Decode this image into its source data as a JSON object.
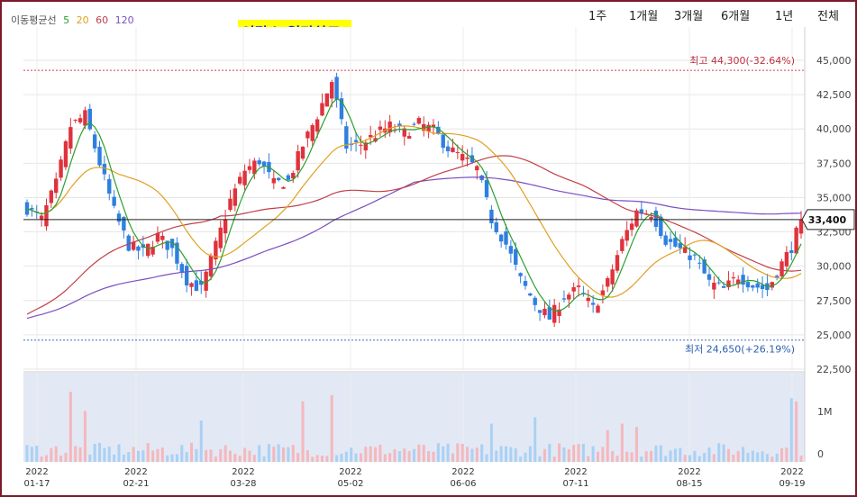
{
  "title": "인탑스-일간차트",
  "ma_legend": {
    "label": "이동평균선",
    "periods": [
      {
        "value": "5",
        "color": "#2ca02c"
      },
      {
        "value": "20",
        "color": "#e0a020"
      },
      {
        "value": "60",
        "color": "#c0404a"
      },
      {
        "value": "120",
        "color": "#7a4fc0"
      }
    ]
  },
  "period_tabs": [
    "1주",
    "1개월",
    "3개월",
    "6개월",
    "1년",
    "전체"
  ],
  "colors": {
    "up": "#e0323c",
    "down": "#2f7fe0",
    "frame": "#7a1a2a",
    "volume_bg": "#e3e8f5",
    "vol_up": "#f4b8bc",
    "vol_down": "#a9d1f4"
  },
  "chart_data": {
    "type": "candlestick",
    "price_axis": {
      "ticks": [
        "45,000",
        "42,500",
        "40,000",
        "37,500",
        "35,000",
        "32,500",
        "30,000",
        "27,500",
        "25,000",
        "22,500"
      ],
      "range": [
        22500,
        45000
      ]
    },
    "volume_axis": {
      "ticks": [
        "1M",
        "0"
      ],
      "range": [
        0,
        1400000
      ]
    },
    "x_ticks": [
      {
        "year": "2022",
        "date": "01-17"
      },
      {
        "year": "2022",
        "date": "02-21"
      },
      {
        "year": "2022",
        "date": "03-28"
      },
      {
        "year": "2022",
        "date": "05-02"
      },
      {
        "year": "2022",
        "date": "06-06"
      },
      {
        "year": "2022",
        "date": "07-11"
      },
      {
        "year": "2022",
        "date": "08-15"
      },
      {
        "year": "2022",
        "date": "09-19"
      }
    ],
    "current_price": {
      "label": "33,400",
      "value": 33400
    },
    "high_marker": {
      "label": "최고 44,300(-32.64%)",
      "value": 44300
    },
    "low_marker": {
      "label": "최저 24,650(+26.19%)",
      "value": 24650
    },
    "close_path": [
      [
        0,
        34200
      ],
      [
        3,
        33400
      ],
      [
        6,
        36000
      ],
      [
        9,
        40200
      ],
      [
        12,
        41000
      ],
      [
        15,
        37500
      ],
      [
        18,
        34000
      ],
      [
        21,
        31500
      ],
      [
        24,
        31000
      ],
      [
        27,
        32200
      ],
      [
        30,
        31200
      ],
      [
        33,
        29000
      ],
      [
        36,
        28300
      ],
      [
        39,
        31500
      ],
      [
        42,
        34800
      ],
      [
        45,
        37000
      ],
      [
        48,
        37700
      ],
      [
        51,
        36000
      ],
      [
        54,
        36200
      ],
      [
        57,
        38800
      ],
      [
        60,
        41000
      ],
      [
        63,
        43500
      ],
      [
        66,
        38700
      ],
      [
        69,
        38900
      ],
      [
        72,
        39600
      ],
      [
        75,
        40200
      ],
      [
        78,
        39700
      ],
      [
        81,
        40400
      ],
      [
        84,
        39900
      ],
      [
        87,
        38600
      ],
      [
        90,
        37900
      ],
      [
        93,
        37100
      ],
      [
        96,
        33400
      ],
      [
        99,
        31600
      ],
      [
        102,
        29000
      ],
      [
        105,
        27300
      ],
      [
        108,
        26200
      ],
      [
        111,
        27800
      ],
      [
        114,
        28300
      ],
      [
        117,
        26900
      ],
      [
        120,
        28800
      ],
      [
        123,
        31800
      ],
      [
        126,
        34000
      ],
      [
        129,
        33900
      ],
      [
        132,
        31900
      ],
      [
        135,
        31200
      ],
      [
        138,
        30600
      ],
      [
        141,
        28800
      ],
      [
        144,
        28300
      ],
      [
        147,
        29300
      ],
      [
        150,
        28600
      ],
      [
        153,
        28300
      ],
      [
        156,
        30200
      ],
      [
        158,
        31400
      ],
      [
        160,
        33400
      ]
    ],
    "volume_spikes": [
      [
        9,
        1100000
      ],
      [
        12,
        800000
      ],
      [
        36,
        650000
      ],
      [
        57,
        950000
      ],
      [
        63,
        1050000
      ],
      [
        96,
        600000
      ],
      [
        105,
        700000
      ],
      [
        120,
        500000
      ],
      [
        123,
        600000
      ],
      [
        126,
        550000
      ],
      [
        158,
        1000000
      ],
      [
        159,
        950000
      ]
    ]
  }
}
